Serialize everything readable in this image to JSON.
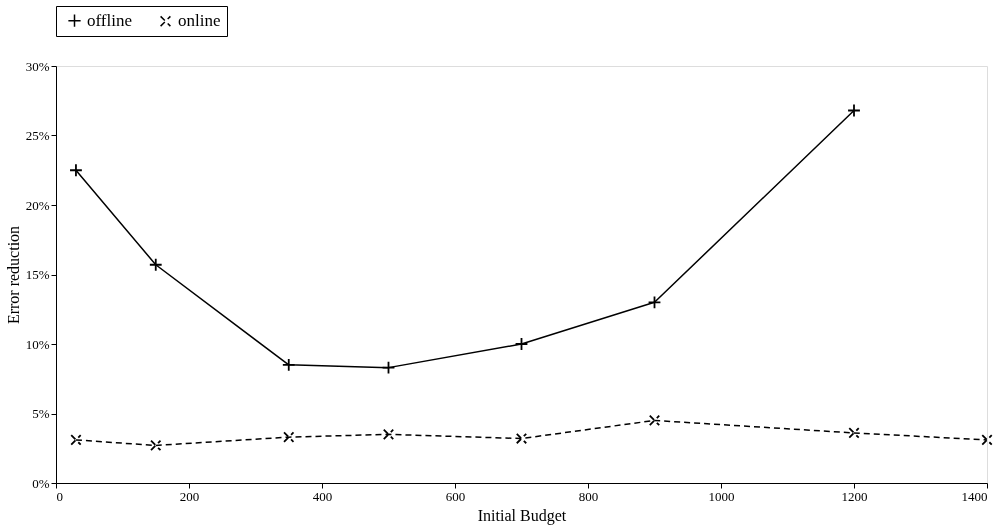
{
  "chart_data": {
    "type": "line",
    "xlabel": "Initial Budget",
    "ylabel": "Error reduction",
    "x": [
      30,
      150,
      350,
      500,
      700,
      900,
      1200,
      1400
    ],
    "series": [
      {
        "name": "offline",
        "color": "#000000",
        "line_style": "solid",
        "marker": "cross",
        "values": [
          22.5,
          15.7,
          8.5,
          8.3,
          10.0,
          13.0,
          26.8,
          null
        ]
      },
      {
        "name": "online",
        "color": "#000000",
        "line_style": "dashed",
        "marker": "x",
        "values": [
          3.1,
          2.7,
          3.3,
          3.5,
          3.2,
          4.5,
          3.6,
          3.1
        ]
      }
    ],
    "xlim": [
      0,
      1400
    ],
    "xticks": [
      0,
      200,
      400,
      600,
      800,
      1000,
      1200,
      1400
    ],
    "ylim": [
      0,
      30
    ],
    "yticks": [
      {
        "value": 0,
        "label": "0%"
      },
      {
        "value": 5,
        "label": "5%"
      },
      {
        "value": 10,
        "label": "10%"
      },
      {
        "value": 15,
        "label": "15%"
      },
      {
        "value": 20,
        "label": "20%"
      },
      {
        "value": 25,
        "label": "25%"
      },
      {
        "value": 30,
        "label": "30%"
      }
    ],
    "grid": false,
    "legend": "top"
  }
}
